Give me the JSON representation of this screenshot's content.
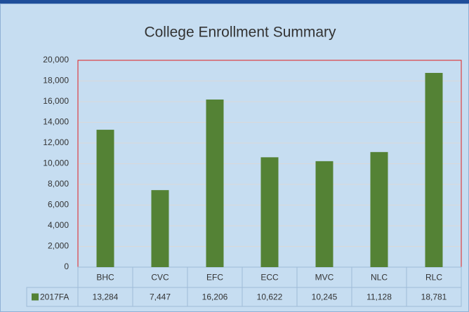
{
  "chart_data": {
    "type": "bar",
    "title": "College Enrollment Summary",
    "categories": [
      "BHC",
      "CVC",
      "EFC",
      "ECC",
      "MVC",
      "NLC",
      "RLC"
    ],
    "series": [
      {
        "name": "2017FA",
        "color": "#548235",
        "values": [
          13284,
          7447,
          16206,
          10622,
          10245,
          11128,
          18781
        ],
        "value_labels": [
          "13,284",
          "7,447",
          "16,206",
          "10,622",
          "10,245",
          "11,128",
          "18,781"
        ]
      }
    ],
    "ylim": [
      0,
      20000
    ],
    "yticks": [
      0,
      {
        "value": 2000,
        "label": "2,000"
      },
      {
        "value": 4000,
        "label": "4,000"
      },
      {
        "value": 6000,
        "label": "6,000"
      },
      {
        "value": 8000,
        "label": "8,000"
      },
      {
        "value": 10000,
        "label": "10,000"
      },
      {
        "value": 12000,
        "label": "12,000"
      },
      {
        "value": 14000,
        "label": "14,000"
      },
      {
        "value": 16000,
        "label": "16,000"
      },
      {
        "value": 18000,
        "label": "18,000"
      },
      {
        "value": 20000,
        "label": "20,000"
      }
    ],
    "grid": true
  }
}
